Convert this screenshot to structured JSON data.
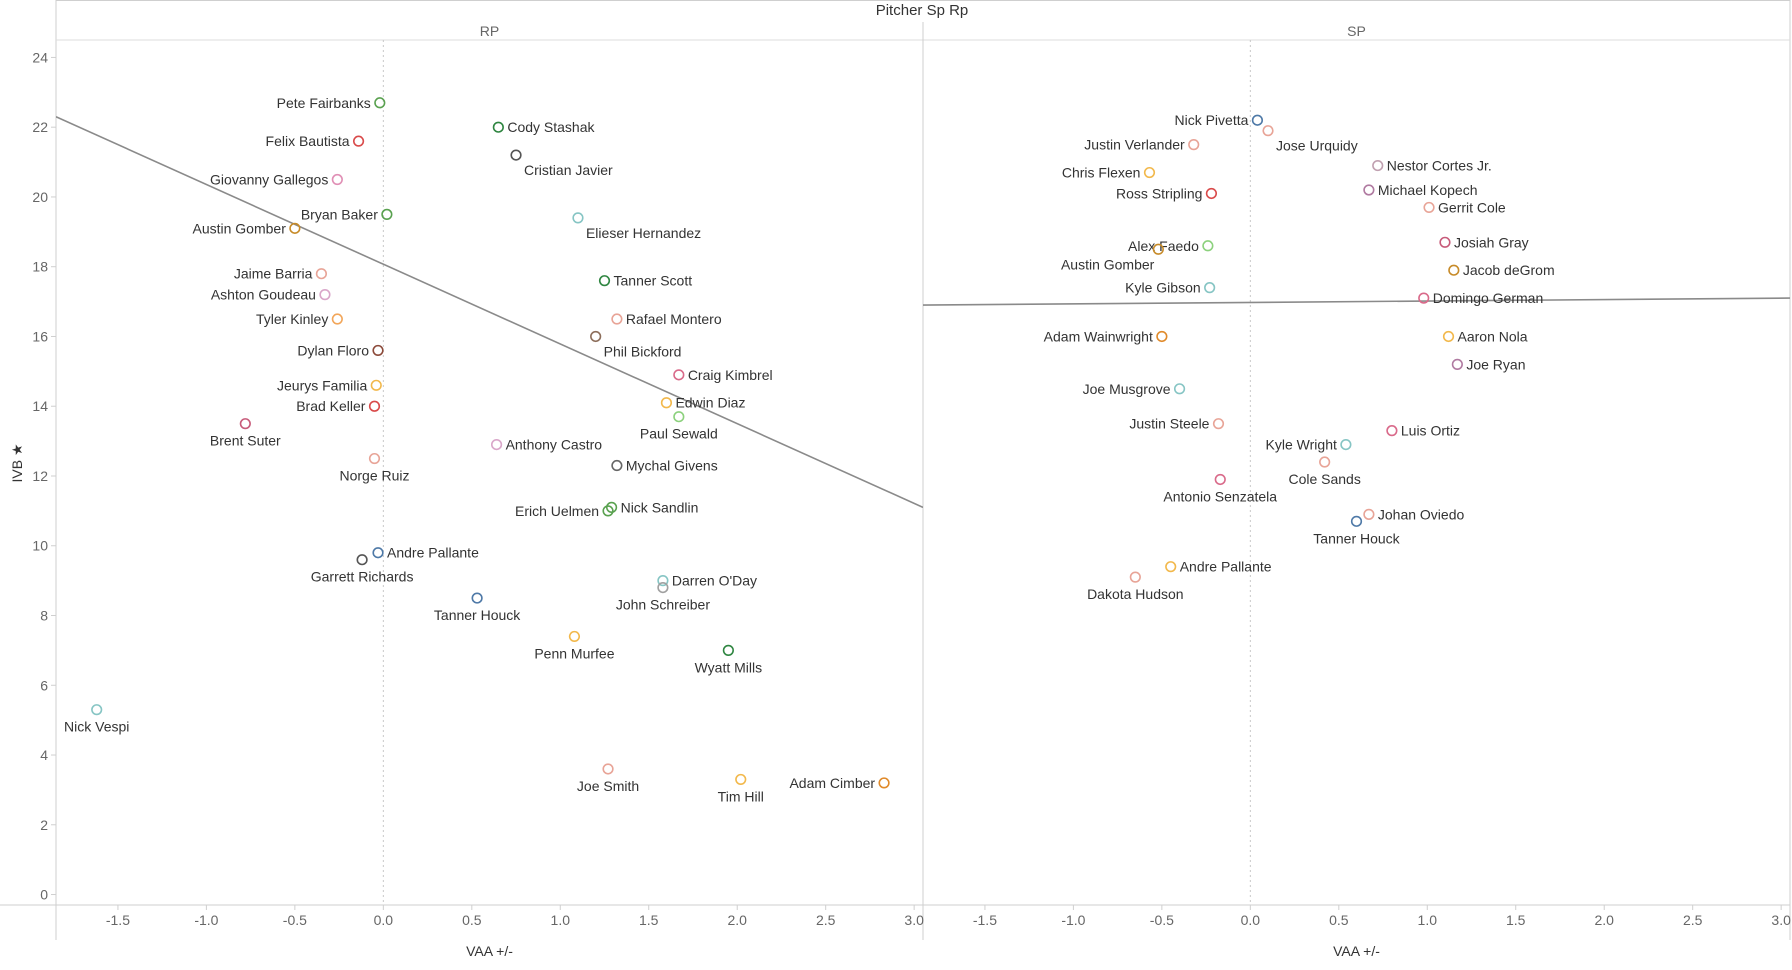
{
  "chart_data": {
    "type": "scatter",
    "title": "Pitcher Sp Rp",
    "xlabel": "VAA +/-",
    "ylabel": "IVB ★",
    "xlim": [
      -1.85,
      3.05
    ],
    "ylim": [
      -0.3,
      24.5
    ],
    "x_ticks": [
      -1.5,
      -1.0,
      -0.5,
      0.0,
      0.5,
      1.0,
      1.5,
      2.0,
      2.5,
      3.0
    ],
    "x_tick_labels": [
      "-1.5",
      "-1.0",
      "-0.5",
      "0.0",
      "0.5",
      "1.0",
      "1.5",
      "2.0",
      "2.5",
      "3.0"
    ],
    "y_ticks": [
      0,
      2,
      4,
      6,
      8,
      10,
      12,
      14,
      16,
      18,
      20,
      22,
      24
    ],
    "y_tick_labels": [
      "0",
      "2",
      "4",
      "6",
      "8",
      "10",
      "12",
      "14",
      "16",
      "18",
      "20",
      "22",
      "24"
    ],
    "grid": true,
    "panels": [
      {
        "name": "RP",
        "trend_line": {
          "x": [
            -1.85,
            3.05
          ],
          "y": [
            22.3,
            11.1
          ]
        },
        "labeled_points": [
          {
            "name": "Pete Fairbanks",
            "x": -0.02,
            "y": 22.7,
            "color": "#59a14f",
            "label_side": "left"
          },
          {
            "name": "Cody Stashak",
            "x": 0.65,
            "y": 22.0,
            "color": "#2e8540",
            "label_side": "right"
          },
          {
            "name": "Felix Bautista",
            "x": -0.14,
            "y": 21.6,
            "color": "#d94a4a",
            "label_side": "left"
          },
          {
            "name": "Cristian Javier",
            "x": 0.75,
            "y": 21.2,
            "color": "#555555",
            "label_side": "right-below"
          },
          {
            "name": "Giovanny Gallegos",
            "x": -0.26,
            "y": 20.5,
            "color": "#e08fb5",
            "label_side": "left"
          },
          {
            "name": "Bryan Baker",
            "x": 0.02,
            "y": 19.5,
            "color": "#59a14f",
            "label_side": "left"
          },
          {
            "name": "Elieser Hernandez",
            "x": 1.1,
            "y": 19.4,
            "color": "#86c5c4",
            "label_side": "right-below"
          },
          {
            "name": "Austin Gomber",
            "x": -0.5,
            "y": 19.1,
            "color": "#c78b29",
            "label_side": "left"
          },
          {
            "name": "Jaime Barria",
            "x": -0.35,
            "y": 17.8,
            "color": "#e8a497",
            "label_side": "left"
          },
          {
            "name": "Tanner Scott",
            "x": 1.25,
            "y": 17.6,
            "color": "#2e8540",
            "label_side": "right"
          },
          {
            "name": "Ashton Goudeau",
            "x": -0.33,
            "y": 17.2,
            "color": "#d9a6c9",
            "label_side": "left"
          },
          {
            "name": "Rafael Montero",
            "x": 1.32,
            "y": 16.5,
            "color": "#e8a497",
            "label_side": "right"
          },
          {
            "name": "Tyler Kinley",
            "x": -0.26,
            "y": 16.5,
            "color": "#f2a65a",
            "label_side": "left"
          },
          {
            "name": "Phil Bickford",
            "x": 1.2,
            "y": 16.0,
            "color": "#8c6d5a",
            "label_side": "right-below"
          },
          {
            "name": "Dylan Floro",
            "x": -0.03,
            "y": 15.6,
            "color": "#8c4a3a",
            "label_side": "left"
          },
          {
            "name": "Craig Kimbrel",
            "x": 1.67,
            "y": 14.9,
            "color": "#d96a8a",
            "label_side": "right"
          },
          {
            "name": "Jeurys Familia",
            "x": -0.04,
            "y": 14.6,
            "color": "#f2b84b",
            "label_side": "left"
          },
          {
            "name": "Edwin Diaz",
            "x": 1.6,
            "y": 14.1,
            "color": "#f2b84b",
            "label_side": "right"
          },
          {
            "name": "Brad Keller",
            "x": -0.05,
            "y": 14.0,
            "color": "#d94a4a",
            "label_side": "left"
          },
          {
            "name": "Brent Suter",
            "x": -0.78,
            "y": 13.5,
            "color": "#c75b7a",
            "label_side": "below"
          },
          {
            "name": "Paul Sewald",
            "x": 1.67,
            "y": 13.7,
            "color": "#8cd17d",
            "label_side": "below"
          },
          {
            "name": "Anthony Castro",
            "x": 0.64,
            "y": 12.9,
            "color": "#d9a6c9",
            "label_side": "right"
          },
          {
            "name": "Mychal Givens",
            "x": 1.32,
            "y": 12.3,
            "color": "#666666",
            "label_side": "right"
          },
          {
            "name": "Norge Ruiz",
            "x": -0.05,
            "y": 12.5,
            "color": "#e8a497",
            "label_side": "below"
          },
          {
            "name": "Nick Sandlin",
            "x": 1.29,
            "y": 11.1,
            "color": "#59a14f",
            "label_side": "right"
          },
          {
            "name": "Erich Uelmen",
            "x": 1.27,
            "y": 11.0,
            "color": "#59a14f",
            "label_side": "left"
          },
          {
            "name": "Andre Pallante",
            "x": -0.03,
            "y": 9.8,
            "color": "#4e79a7",
            "label_side": "right"
          },
          {
            "name": "Garrett Richards",
            "x": -0.12,
            "y": 9.6,
            "color": "#555555",
            "label_side": "below"
          },
          {
            "name": "Darren O'Day",
            "x": 1.58,
            "y": 9.0,
            "color": "#86c5c4",
            "label_side": "right"
          },
          {
            "name": "John Schreiber",
            "x": 1.58,
            "y": 8.8,
            "color": "#a0a0a0",
            "label_side": "below"
          },
          {
            "name": "Tanner Houck",
            "x": 0.53,
            "y": 8.5,
            "color": "#4e79a7",
            "label_side": "below"
          },
          {
            "name": "Penn Murfee",
            "x": 1.08,
            "y": 7.4,
            "color": "#f2b84b",
            "label_side": "below"
          },
          {
            "name": "Wyatt Mills",
            "x": 1.95,
            "y": 7.0,
            "color": "#2e8540",
            "label_side": "below"
          },
          {
            "name": "Nick Vespi",
            "x": -1.62,
            "y": 5.3,
            "color": "#86c5c4",
            "label_side": "below"
          },
          {
            "name": "Joe Smith",
            "x": 1.27,
            "y": 3.6,
            "color": "#e8a497",
            "label_side": "below"
          },
          {
            "name": "Tim Hill",
            "x": 2.02,
            "y": 3.3,
            "color": "#f2b84b",
            "label_side": "below"
          },
          {
            "name": "Adam Cimber",
            "x": 2.83,
            "y": 3.2,
            "color": "#e08a2a",
            "label_side": "left"
          }
        ]
      },
      {
        "name": "SP",
        "trend_line": {
          "x": [
            -1.85,
            3.05
          ],
          "y": [
            16.9,
            17.1
          ]
        },
        "labeled_points": [
          {
            "name": "Nick Pivetta",
            "x": 0.04,
            "y": 22.2,
            "color": "#4e79a7",
            "label_side": "left"
          },
          {
            "name": "Jose Urquidy",
            "x": 0.1,
            "y": 21.9,
            "color": "#e8a497",
            "label_side": "right-below"
          },
          {
            "name": "Justin Verlander",
            "x": -0.32,
            "y": 21.5,
            "color": "#e8a497",
            "label_side": "left"
          },
          {
            "name": "Nestor Cortes Jr.",
            "x": 0.72,
            "y": 20.9,
            "color": "#c0a0b0",
            "label_side": "right"
          },
          {
            "name": "Chris Flexen",
            "x": -0.57,
            "y": 20.7,
            "color": "#f2b84b",
            "label_side": "left"
          },
          {
            "name": "Michael Kopech",
            "x": 0.67,
            "y": 20.2,
            "color": "#b07aa1",
            "label_side": "right"
          },
          {
            "name": "Ross Stripling",
            "x": -0.22,
            "y": 20.1,
            "color": "#d94a4a",
            "label_side": "left"
          },
          {
            "name": "Gerrit Cole",
            "x": 1.01,
            "y": 19.7,
            "color": "#e8a497",
            "label_side": "right"
          },
          {
            "name": "Alex Faedo",
            "x": -0.24,
            "y": 18.6,
            "color": "#8cd17d",
            "label_side": "left"
          },
          {
            "name": "Josiah Gray",
            "x": 1.1,
            "y": 18.7,
            "color": "#c75b7a",
            "label_side": "right"
          },
          {
            "name": "Austin Gomber",
            "x": -0.52,
            "y": 18.5,
            "color": "#c78b29",
            "label_side": "left-below"
          },
          {
            "name": "Jacob deGrom",
            "x": 1.15,
            "y": 17.9,
            "color": "#c78b29",
            "label_side": "right"
          },
          {
            "name": "Kyle Gibson",
            "x": -0.23,
            "y": 17.4,
            "color": "#86c5c4",
            "label_side": "left"
          },
          {
            "name": "Domingo German",
            "x": 0.98,
            "y": 17.1,
            "color": "#d96a8a",
            "label_side": "right"
          },
          {
            "name": "Adam Wainwright",
            "x": -0.5,
            "y": 16.0,
            "color": "#e08a2a",
            "label_side": "left"
          },
          {
            "name": "Aaron Nola",
            "x": 1.12,
            "y": 16.0,
            "color": "#f2b84b",
            "label_side": "right"
          },
          {
            "name": "Joe Ryan",
            "x": 1.17,
            "y": 15.2,
            "color": "#b07aa1",
            "label_side": "right"
          },
          {
            "name": "Joe Musgrove",
            "x": -0.4,
            "y": 14.5,
            "color": "#86c5c4",
            "label_side": "left"
          },
          {
            "name": "Justin Steele",
            "x": -0.18,
            "y": 13.5,
            "color": "#e8a497",
            "label_side": "left"
          },
          {
            "name": "Luis Ortiz",
            "x": 0.8,
            "y": 13.3,
            "color": "#d96a8a",
            "label_side": "right"
          },
          {
            "name": "Kyle Wright",
            "x": 0.54,
            "y": 12.9,
            "color": "#86c5c4",
            "label_side": "left"
          },
          {
            "name": "Cole Sands",
            "x": 0.42,
            "y": 12.4,
            "color": "#e8a497",
            "label_side": "below"
          },
          {
            "name": "Antonio Senzatela",
            "x": -0.17,
            "y": 11.9,
            "color": "#d96a8a",
            "label_side": "below"
          },
          {
            "name": "Johan Oviedo",
            "x": 0.67,
            "y": 10.9,
            "color": "#e8a497",
            "label_side": "right"
          },
          {
            "name": "Tanner Houck",
            "x": 0.6,
            "y": 10.7,
            "color": "#4e79a7",
            "label_side": "below"
          },
          {
            "name": "Andre Pallante",
            "x": -0.45,
            "y": 9.4,
            "color": "#f2b84b",
            "label_side": "right"
          },
          {
            "name": "Dakota Hudson",
            "x": -0.65,
            "y": 9.1,
            "color": "#e8a497",
            "label_side": "below"
          }
        ]
      }
    ]
  }
}
